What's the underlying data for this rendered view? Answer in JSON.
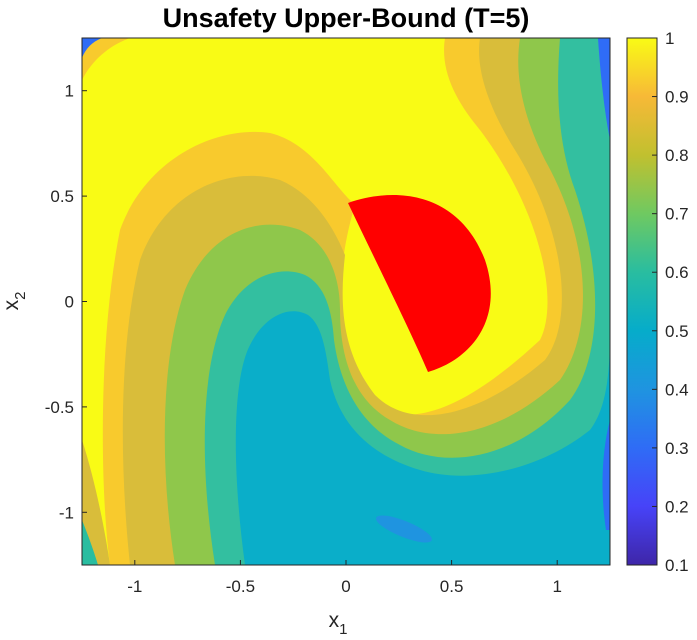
{
  "chart_data": {
    "type": "heatmap",
    "title": "Unsafety Upper-Bound (T=5)",
    "xlabel_base": "x",
    "xlabel_sub": "1",
    "ylabel_base": "x",
    "ylabel_sub": "2",
    "xlim": [
      -1.25,
      1.25
    ],
    "ylim": [
      -1.25,
      1.25
    ],
    "xticks": [
      -1,
      -0.5,
      0,
      0.5,
      1
    ],
    "xtick_labels": [
      "-1",
      "-0.5",
      "0",
      "0.5",
      "1"
    ],
    "yticks": [
      -1,
      -0.5,
      0,
      0.5,
      1
    ],
    "ytick_labels": [
      "-1",
      "-0.5",
      "0",
      "0.5",
      "1"
    ],
    "colorbar": {
      "range": [
        0.1,
        1
      ],
      "ticks": [
        0.1,
        0.2,
        0.3,
        0.4,
        0.5,
        0.6,
        0.7,
        0.8,
        0.9,
        1
      ],
      "tick_labels": [
        "0.1",
        "0.2",
        "0.3",
        "0.4",
        "0.5",
        "0.6",
        "0.7",
        "0.8",
        "0.9",
        "1"
      ],
      "colormap": "parula"
    },
    "colormap_stops": [
      "#3e26a8",
      "#4743f8",
      "#2f6cf6",
      "#1f94e0",
      "#06acca",
      "#29bda0",
      "#6fc961",
      "#c1c02f",
      "#f7b937",
      "#f9fb15"
    ],
    "contour_levels": [
      0.1,
      0.2,
      0.3,
      0.4,
      0.5,
      0.6,
      0.7,
      0.8,
      0.9,
      1
    ],
    "unsafe_region": {
      "shape": "crescent",
      "color": "#ff0000",
      "outer_arc_center": [
        0.2,
        0.0
      ],
      "outer_arc_radius": 0.47,
      "tip_top": [
        0.0,
        0.47
      ],
      "tip_bottom": [
        0.39,
        -0.45
      ]
    },
    "grid": false
  }
}
